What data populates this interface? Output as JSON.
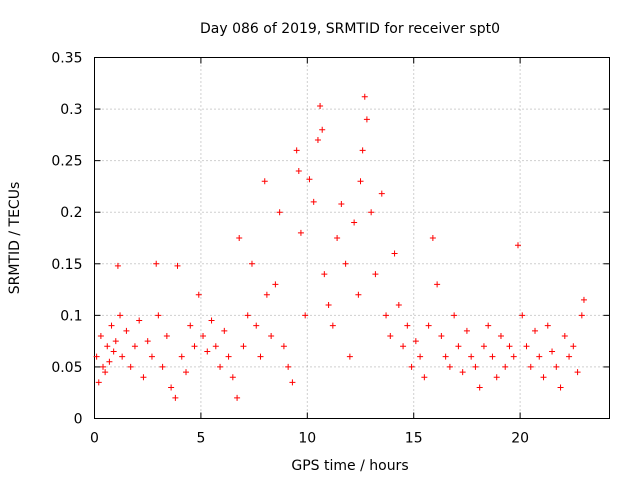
{
  "chart_data": {
    "type": "scatter",
    "title": "Day 086 of 2019, SRMTID for receiver spt0",
    "xlabel": "GPS time / hours",
    "ylabel": "SRMTID / TECUs",
    "xlim": [
      0,
      24.2
    ],
    "ylim": [
      0,
      0.35
    ],
    "grid": true,
    "marker": "+",
    "color": "#ff0000",
    "xticks": [
      0,
      5,
      10,
      15,
      20
    ],
    "xtick_labels": [
      "0",
      "5",
      "10",
      "15",
      "20"
    ],
    "yticks": [
      0,
      0.05,
      0.1,
      0.15,
      0.2,
      0.25,
      0.3,
      0.35
    ],
    "ytick_labels": [
      "0",
      "0.05",
      "0.1",
      "0.15",
      "0.2",
      "0.25",
      "0.3",
      "0.35"
    ],
    "series": [
      {
        "name": "SRMTID",
        "points": [
          [
            0.1,
            0.06
          ],
          [
            0.2,
            0.035
          ],
          [
            0.3,
            0.08
          ],
          [
            0.4,
            0.05
          ],
          [
            0.5,
            0.045
          ],
          [
            0.6,
            0.07
          ],
          [
            0.7,
            0.055
          ],
          [
            0.8,
            0.09
          ],
          [
            0.9,
            0.065
          ],
          [
            1.0,
            0.075
          ],
          [
            1.1,
            0.148
          ],
          [
            1.2,
            0.1
          ],
          [
            1.3,
            0.06
          ],
          [
            1.5,
            0.085
          ],
          [
            1.7,
            0.05
          ],
          [
            1.9,
            0.07
          ],
          [
            2.1,
            0.095
          ],
          [
            2.3,
            0.04
          ],
          [
            2.5,
            0.075
          ],
          [
            2.7,
            0.06
          ],
          [
            2.9,
            0.15
          ],
          [
            3.0,
            0.1
          ],
          [
            3.2,
            0.05
          ],
          [
            3.4,
            0.08
          ],
          [
            3.6,
            0.03
          ],
          [
            3.8,
            0.02
          ],
          [
            3.9,
            0.148
          ],
          [
            4.1,
            0.06
          ],
          [
            4.3,
            0.045
          ],
          [
            4.5,
            0.09
          ],
          [
            4.7,
            0.07
          ],
          [
            4.9,
            0.12
          ],
          [
            5.1,
            0.08
          ],
          [
            5.3,
            0.065
          ],
          [
            5.5,
            0.095
          ],
          [
            5.7,
            0.07
          ],
          [
            5.9,
            0.05
          ],
          [
            6.1,
            0.085
          ],
          [
            6.3,
            0.06
          ],
          [
            6.5,
            0.04
          ],
          [
            6.7,
            0.02
          ],
          [
            6.8,
            0.175
          ],
          [
            7.0,
            0.07
          ],
          [
            7.2,
            0.1
          ],
          [
            7.4,
            0.15
          ],
          [
            7.6,
            0.09
          ],
          [
            7.8,
            0.06
          ],
          [
            8.0,
            0.23
          ],
          [
            8.1,
            0.12
          ],
          [
            8.3,
            0.08
          ],
          [
            8.5,
            0.13
          ],
          [
            8.7,
            0.2
          ],
          [
            8.9,
            0.07
          ],
          [
            9.1,
            0.05
          ],
          [
            9.3,
            0.035
          ],
          [
            9.5,
            0.26
          ],
          [
            9.6,
            0.24
          ],
          [
            9.7,
            0.18
          ],
          [
            9.9,
            0.1
          ],
          [
            10.1,
            0.232
          ],
          [
            10.3,
            0.21
          ],
          [
            10.5,
            0.27
          ],
          [
            10.6,
            0.303
          ],
          [
            10.7,
            0.28
          ],
          [
            10.8,
            0.14
          ],
          [
            11.0,
            0.11
          ],
          [
            11.2,
            0.09
          ],
          [
            11.4,
            0.175
          ],
          [
            11.6,
            0.208
          ],
          [
            11.8,
            0.15
          ],
          [
            12.0,
            0.06
          ],
          [
            12.2,
            0.19
          ],
          [
            12.4,
            0.12
          ],
          [
            12.5,
            0.23
          ],
          [
            12.6,
            0.26
          ],
          [
            12.7,
            0.312
          ],
          [
            12.8,
            0.29
          ],
          [
            13.0,
            0.2
          ],
          [
            13.2,
            0.14
          ],
          [
            13.5,
            0.218
          ],
          [
            13.7,
            0.1
          ],
          [
            13.9,
            0.08
          ],
          [
            14.1,
            0.16
          ],
          [
            14.3,
            0.11
          ],
          [
            14.5,
            0.07
          ],
          [
            14.7,
            0.09
          ],
          [
            14.9,
            0.05
          ],
          [
            15.1,
            0.075
          ],
          [
            15.3,
            0.06
          ],
          [
            15.5,
            0.04
          ],
          [
            15.7,
            0.09
          ],
          [
            15.9,
            0.175
          ],
          [
            16.1,
            0.13
          ],
          [
            16.3,
            0.08
          ],
          [
            16.5,
            0.06
          ],
          [
            16.7,
            0.05
          ],
          [
            16.9,
            0.1
          ],
          [
            17.1,
            0.07
          ],
          [
            17.3,
            0.045
          ],
          [
            17.5,
            0.085
          ],
          [
            17.7,
            0.06
          ],
          [
            17.9,
            0.05
          ],
          [
            18.1,
            0.03
          ],
          [
            18.3,
            0.07
          ],
          [
            18.5,
            0.09
          ],
          [
            18.7,
            0.06
          ],
          [
            18.9,
            0.04
          ],
          [
            19.1,
            0.08
          ],
          [
            19.3,
            0.05
          ],
          [
            19.5,
            0.07
          ],
          [
            19.7,
            0.06
          ],
          [
            19.9,
            0.168
          ],
          [
            20.1,
            0.1
          ],
          [
            20.3,
            0.07
          ],
          [
            20.5,
            0.05
          ],
          [
            20.7,
            0.085
          ],
          [
            20.9,
            0.06
          ],
          [
            21.1,
            0.04
          ],
          [
            21.3,
            0.09
          ],
          [
            21.5,
            0.065
          ],
          [
            21.7,
            0.05
          ],
          [
            21.9,
            0.03
          ],
          [
            22.1,
            0.08
          ],
          [
            22.3,
            0.06
          ],
          [
            22.5,
            0.07
          ],
          [
            22.7,
            0.045
          ],
          [
            22.9,
            0.1
          ],
          [
            23.0,
            0.115
          ]
        ]
      }
    ]
  }
}
